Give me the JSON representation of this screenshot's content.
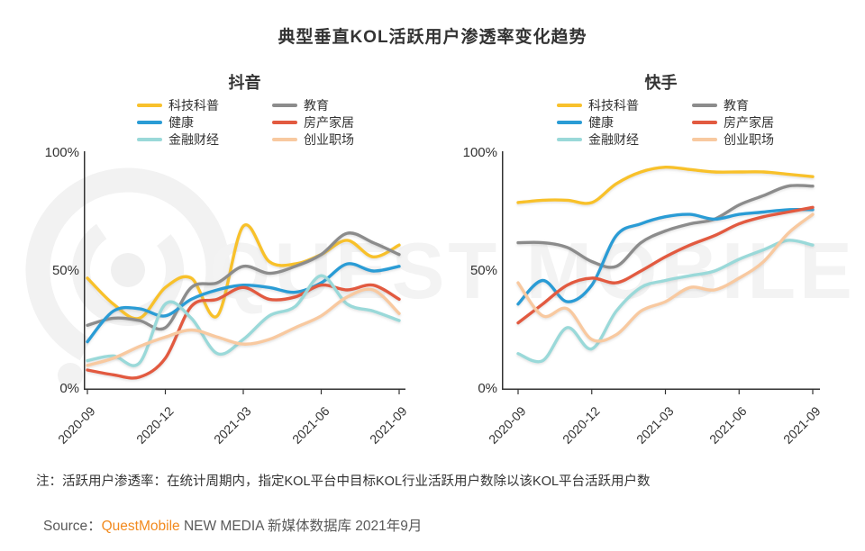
{
  "title": "典型垂直KOL活跃用户渗透率变化趋势",
  "note": "注：活跃用户渗透率：在统计周期内，指定KOL平台中目标KOL行业活跃用户数除以该KOL平台活跃用户数",
  "source": {
    "prefix": "Source：",
    "brand": "QuestMobile",
    "suffix": " NEW MEDIA 新媒体数据库 2021年9月"
  },
  "watermark": {
    "text": "QUEST MOBILE"
  },
  "colors": {
    "tech": "#f8c12c",
    "education": "#8c8c8c",
    "health": "#2a9cd5",
    "realestate": "#e25a40",
    "finance": "#9ad9d9",
    "career": "#f8c9a0",
    "axis": "#333333",
    "brand_orange": "#f28a1e",
    "watermark_gray": "#f3f3f3"
  },
  "chart_data": [
    {
      "type": "line",
      "title": "抖音",
      "ylabel": "活跃用户渗透率",
      "ylim": [
        0,
        100
      ],
      "y_ticks": [
        {
          "label": "0%",
          "value": 0
        },
        {
          "label": "50%",
          "value": 50
        },
        {
          "label": "100%",
          "value": 100
        }
      ],
      "x": [
        "2020-09",
        "2020-10",
        "2020-11",
        "2020-12",
        "2021-01",
        "2021-02",
        "2021-03",
        "2021-04",
        "2021-05",
        "2021-06",
        "2021-07",
        "2021-08",
        "2021-09"
      ],
      "x_tick_indices": [
        0,
        3,
        6,
        9,
        12
      ],
      "x_tick_labels": [
        "2020-09",
        "2020-12",
        "2021-03",
        "2021-06",
        "2021-09"
      ],
      "grid": false,
      "legend_position": "top",
      "series": [
        {
          "name": "科技科普",
          "color": "tech",
          "values": [
            47,
            36,
            30,
            43,
            47,
            31,
            69,
            54,
            53,
            57,
            63,
            56,
            61
          ]
        },
        {
          "name": "教育",
          "color": "education",
          "values": [
            27,
            30,
            29,
            26,
            43,
            45,
            52,
            49,
            52,
            57,
            66,
            62,
            57
          ]
        },
        {
          "name": "健康",
          "color": "health",
          "values": [
            20,
            33,
            34,
            31,
            38,
            42,
            44,
            43,
            41,
            45,
            53,
            50,
            52
          ]
        },
        {
          "name": "房产家居",
          "color": "realestate",
          "values": [
            8,
            6,
            5,
            13,
            35,
            38,
            43,
            38,
            39,
            44,
            42,
            44,
            38
          ]
        },
        {
          "name": "金融财经",
          "color": "finance",
          "values": [
            12,
            14,
            11,
            36,
            30,
            15,
            21,
            31,
            35,
            48,
            36,
            33,
            29
          ]
        },
        {
          "name": "创业职场",
          "color": "career",
          "values": [
            10,
            13,
            18,
            22,
            25,
            22,
            19,
            21,
            26,
            31,
            39,
            42,
            32
          ]
        }
      ]
    },
    {
      "type": "line",
      "title": "快手",
      "ylabel": "活跃用户渗透率",
      "ylim": [
        0,
        100
      ],
      "y_ticks": [
        {
          "label": "0%",
          "value": 0
        },
        {
          "label": "50%",
          "value": 50
        },
        {
          "label": "100%",
          "value": 100
        }
      ],
      "x": [
        "2020-09",
        "2020-10",
        "2020-11",
        "2020-12",
        "2021-01",
        "2021-02",
        "2021-03",
        "2021-04",
        "2021-05",
        "2021-06",
        "2021-07",
        "2021-08",
        "2021-09"
      ],
      "x_tick_indices": [
        0,
        3,
        6,
        9,
        12
      ],
      "x_tick_labels": [
        "2020-09",
        "2020-12",
        "2021-03",
        "2021-06",
        "2021-09"
      ],
      "grid": false,
      "legend_position": "top",
      "series": [
        {
          "name": "科技科普",
          "color": "tech",
          "values": [
            79,
            80,
            80,
            79,
            87,
            92,
            94,
            93,
            92,
            92,
            92,
            91,
            90
          ]
        },
        {
          "name": "教育",
          "color": "education",
          "values": [
            62,
            62,
            60,
            54,
            52,
            62,
            67,
            70,
            72,
            78,
            82,
            86,
            86
          ]
        },
        {
          "name": "健康",
          "color": "health",
          "values": [
            36,
            46,
            37,
            44,
            65,
            70,
            73,
            74,
            72,
            74,
            75,
            76,
            76
          ]
        },
        {
          "name": "房产家居",
          "color": "realestate",
          "values": [
            28,
            36,
            44,
            47,
            45,
            50,
            56,
            61,
            65,
            70,
            73,
            75,
            77
          ]
        },
        {
          "name": "金融财经",
          "color": "finance",
          "values": [
            15,
            12,
            26,
            17,
            33,
            43,
            46,
            48,
            50,
            55,
            59,
            63,
            61
          ]
        },
        {
          "name": "创业职场",
          "color": "career",
          "values": [
            45,
            31,
            34,
            21,
            23,
            33,
            37,
            43,
            42,
            47,
            54,
            66,
            74
          ]
        }
      ]
    }
  ]
}
